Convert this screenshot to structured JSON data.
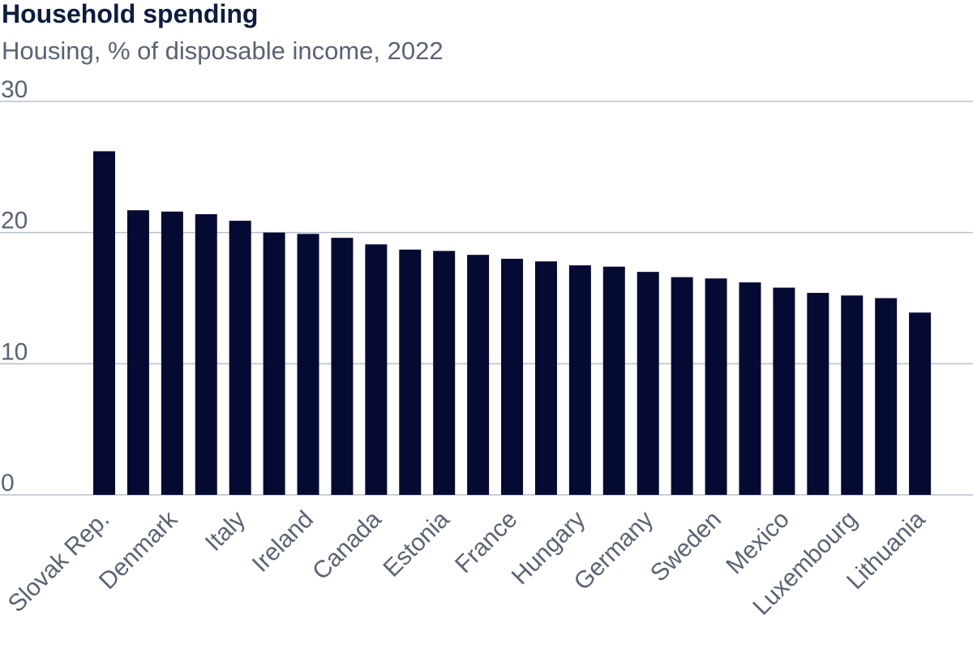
{
  "title": "Household spending",
  "subtitle": "Housing, % of disposable income, 2022",
  "colors": {
    "bar": "#050a33",
    "grid": "#b7c0c9",
    "text": "#5a6374",
    "title": "#0e1c3f"
  },
  "chart_data": {
    "type": "bar",
    "categories": [
      "Slovak Rep.",
      "",
      "Denmark",
      "",
      "Italy",
      "",
      "Ireland",
      "",
      "Canada",
      "",
      "Estonia",
      "",
      "France",
      "",
      "Hungary",
      "",
      "Germany",
      "",
      "Sweden",
      "",
      "Mexico",
      "",
      "Luxembourg",
      "",
      "Lithuania"
    ],
    "values": [
      26.2,
      21.7,
      21.6,
      21.4,
      20.9,
      20.0,
      19.9,
      19.6,
      19.1,
      18.7,
      18.6,
      18.3,
      18.0,
      17.8,
      17.5,
      17.4,
      17.0,
      16.6,
      16.5,
      16.2,
      15.8,
      15.4,
      15.2,
      15.0,
      13.9
    ],
    "yticks": [
      0,
      10,
      20,
      30
    ],
    "ylim": [
      0,
      30
    ],
    "grid": true,
    "xlabel": "",
    "ylabel": ""
  }
}
